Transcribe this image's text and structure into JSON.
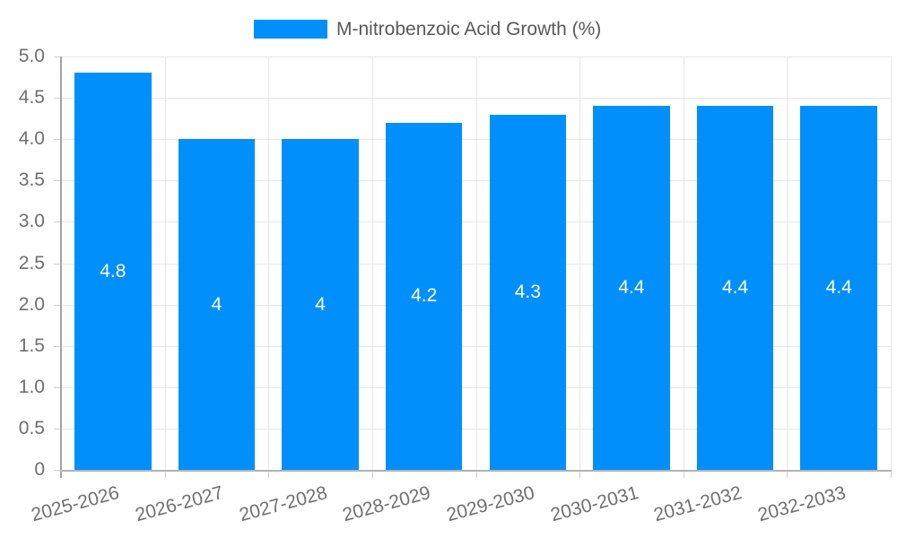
{
  "chart_data": {
    "type": "bar",
    "title": "M-nitrobenzoic Acid Growth (%)",
    "xlabel": "",
    "ylabel": "",
    "categories": [
      "2025-2026",
      "2026-2027",
      "2027-2028",
      "2028-2029",
      "2029-2030",
      "2030-2031",
      "2031-2032",
      "2032-2033"
    ],
    "values": [
      4.8,
      4,
      4,
      4.2,
      4.3,
      4.4,
      4.4,
      4.4
    ],
    "data_labels": [
      "4.8",
      "4",
      "4",
      "4.2",
      "4.3",
      "4.4",
      "4.4",
      "4.4"
    ],
    "ylim": [
      0,
      5
    ],
    "y_tick_step": 0.5,
    "y_tick_labels": [
      "5.0",
      "4.5",
      "4.0",
      "3.5",
      "3.0",
      "2.5",
      "2.0",
      "1.5",
      "1.0",
      "0.5",
      "0"
    ],
    "grid": true,
    "legend_position": "top",
    "legend_entries": [
      "M-nitrobenzoic Acid Growth (%)"
    ],
    "colors": {
      "bar": "#008FFB",
      "grid": "#e6e6e6",
      "y_axis_line": "#a3a3a3",
      "x_axis_line": "#b3b3b3",
      "tick_mark": "#cfcfcf",
      "tick_label": "#6f6f6f",
      "legend_text": "#595959",
      "data_label": "#ffffff",
      "background": "#ffffff"
    }
  }
}
